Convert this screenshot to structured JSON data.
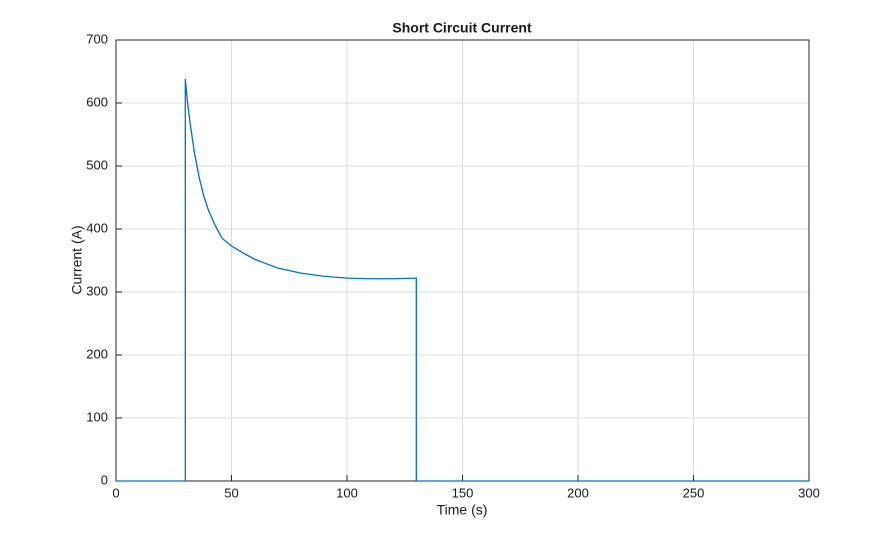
{
  "chart_data": {
    "type": "line",
    "title": "Short Circuit Current",
    "x_label": "Time (s)",
    "y_label": "Current (A)",
    "x": [
      0,
      30,
      30,
      31,
      32,
      34,
      36,
      38,
      40,
      43,
      46,
      50,
      55,
      60,
      70,
      80,
      90,
      100,
      110,
      120,
      130,
      130,
      300
    ],
    "values": [
      0,
      0,
      638,
      600,
      570,
      520,
      482,
      452,
      430,
      405,
      385,
      373,
      362,
      352,
      338,
      330,
      325,
      322,
      321,
      321,
      322,
      0,
      0
    ],
    "color": "#0072bd",
    "xlim": [
      0,
      300
    ],
    "xticks": [
      0,
      50,
      100,
      150,
      200,
      250,
      300
    ],
    "ylim": [
      0,
      700
    ],
    "yticks": [
      0,
      100,
      200,
      300,
      400,
      500,
      600,
      700
    ],
    "grid": true
  }
}
